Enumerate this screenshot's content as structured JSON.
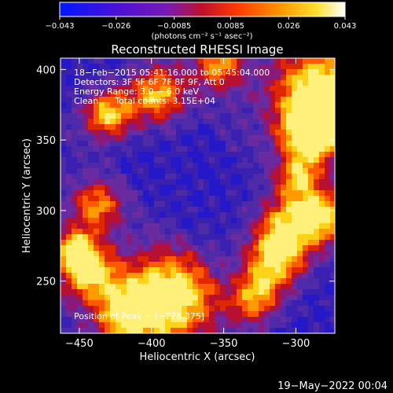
{
  "colorbar": {
    "ticks": [
      "−0.043",
      "−0.026",
      "−0.0085",
      "0.0085",
      "0.026",
      "0.043"
    ],
    "values": [
      -0.043,
      -0.026,
      -0.0085,
      0.0085,
      0.026,
      0.043
    ],
    "range": [
      -0.043,
      0.043
    ],
    "unit_label": "(photons cm⁻² s⁻¹ asec⁻²)"
  },
  "chart_data": {
    "type": "heatmap",
    "title": "Reconstructed RHESSI Image",
    "xlabel": "Heliocentric X (arcsec)",
    "ylabel": "Heliocentric Y (arcsec)",
    "xlim": [
      -463,
      -273
    ],
    "ylim": [
      213,
      408
    ],
    "xticks": [
      -450,
      -400,
      -350,
      -300
    ],
    "yticks": [
      250,
      300,
      350,
      400
    ],
    "xtick_labels": [
      "−450",
      "−400",
      "−350",
      "−300"
    ],
    "ytick_labels": [
      "250",
      "300",
      "350",
      "400"
    ],
    "colormap": "blue-purple-red-yellow-white",
    "peak_position": [
      -276,
      375
    ],
    "annotations": [
      "18−Feb−2015 05:41:16.000 to 05:45:04.000",
      "Detectors: 3F 5F 6F 7F 8F 9F, Att 0",
      "Energy Range: 3.0 − 6.0 keV",
      "Clean      Total counts: 3.15E+04",
      "Position of Peak = [−276,375]"
    ]
  },
  "timestamp": "19−May−2022 00:04"
}
